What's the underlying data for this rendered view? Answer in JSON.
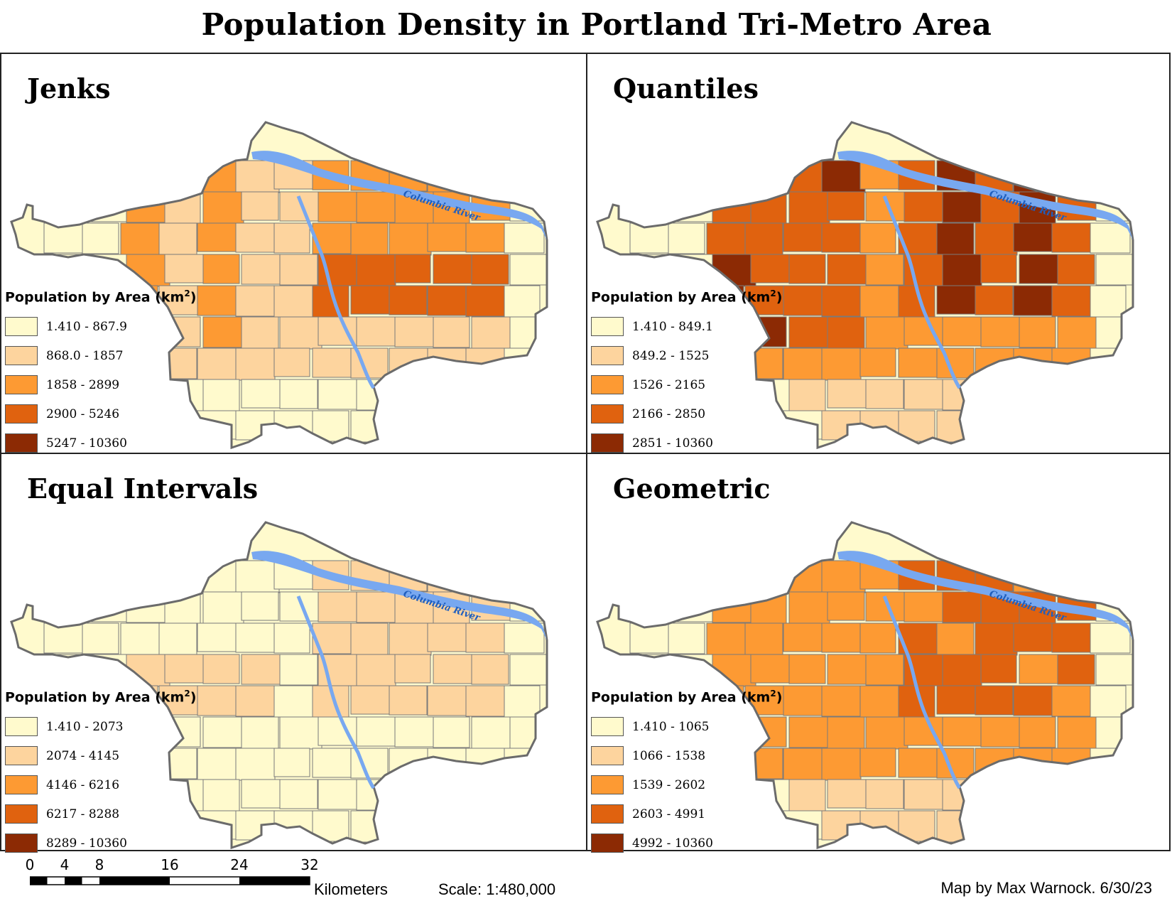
{
  "title": "Population Density in Portland Tri-Metro Area",
  "river_label": "Columbia River",
  "colors": {
    "class1": "#FFFACD",
    "class2": "#FDD49E",
    "class3": "#FD9A33",
    "class4": "#E0620F",
    "class5": "#8C2A04",
    "water": "#78A8F0",
    "tract_border": "#7a7a7a"
  },
  "panels": [
    {
      "title": "Jenks",
      "legend_title": "Population by Area (km",
      "legend_sup": "2",
      "legend_close": ")",
      "classes": [
        "1.410 - 867.9",
        "868.0 - 1857",
        "1858 - 2899",
        "2900 - 5246",
        "5247 - 10360"
      ]
    },
    {
      "title": "Quantiles",
      "legend_title": "Population by Area (km",
      "legend_sup": "2",
      "legend_close": ")",
      "classes": [
        "1.410 - 849.1",
        "849.2 - 1525",
        "1526 - 2165",
        "2166 - 2850",
        "2851 - 10360"
      ]
    },
    {
      "title": "Equal Intervals",
      "legend_title": "Population by Area (km",
      "legend_sup": "2",
      "legend_close": ")",
      "classes": [
        "1.410 - 2073",
        "2074 - 4145",
        "4146 - 6216",
        "6217 - 8288",
        "8289 - 10360"
      ]
    },
    {
      "title": "Geometric",
      "legend_title": "Population by Area (km",
      "legend_sup": "2",
      "legend_close": ")",
      "classes": [
        "1.410 - 1065",
        "1066 - 1538",
        "1539 - 2602",
        "2603 - 4991",
        "4992 - 10360"
      ]
    }
  ],
  "scalebar": {
    "ticks": [
      "0",
      "4",
      "8",
      "16",
      "24",
      "32"
    ],
    "unit": "Kilometers"
  },
  "scale_text": "Scale: 1:480,000",
  "credit": "Map by Max Warnock. 6/30/23"
}
